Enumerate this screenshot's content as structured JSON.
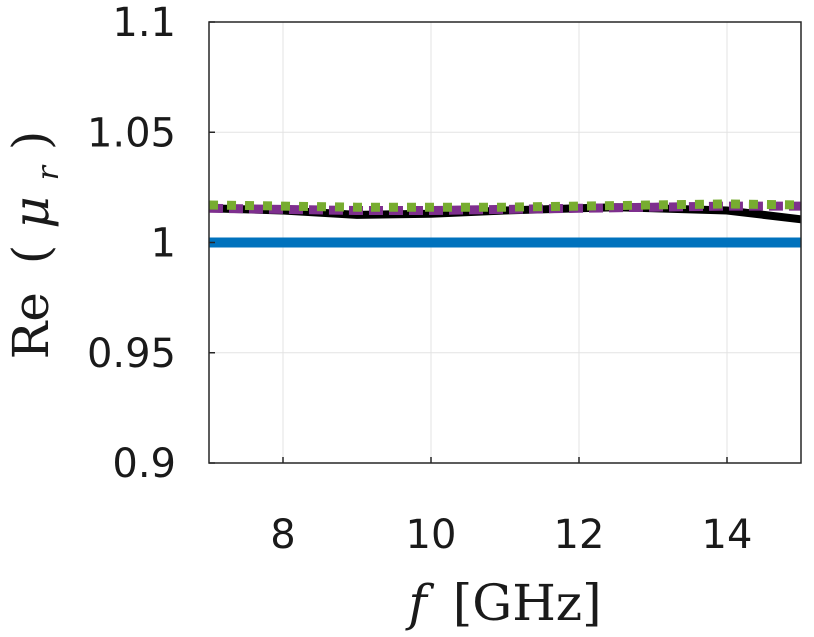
{
  "chart_data": {
    "type": "line",
    "title": "",
    "xlabel_var": "f",
    "xlabel_unit": "[GHz]",
    "ylabel_main": "Re",
    "ylabel_paren_open": "(",
    "ylabel_symbol": "μ",
    "ylabel_sub": "r",
    "ylabel_paren_close": ")",
    "xlim": [
      7,
      15
    ],
    "ylim": [
      0.9,
      1.1
    ],
    "x_ticks": [
      8,
      10,
      12,
      14
    ],
    "x_tick_labels": [
      "8",
      "10",
      "12",
      "14"
    ],
    "y_ticks": [
      0.9,
      0.95,
      1,
      1.05,
      1.1
    ],
    "y_tick_labels": [
      "0.9",
      "0.95",
      "1",
      "1.05",
      "1.1"
    ],
    "grid": true,
    "series": [
      {
        "color": "#0072bd",
        "style": "solid",
        "x": [
          7,
          15
        ],
        "y": [
          1.0,
          1.0
        ]
      },
      {
        "color": "#000000",
        "style": "solid",
        "x": [
          7,
          8,
          9,
          10,
          11,
          12,
          12.5,
          13,
          14,
          15
        ],
        "y": [
          1.0155,
          1.0145,
          1.0125,
          1.013,
          1.0145,
          1.0155,
          1.016,
          1.0155,
          1.0145,
          1.0105
        ]
      },
      {
        "color": "#7e2f8e",
        "style": "dashed",
        "x": [
          7,
          8,
          9,
          10,
          11,
          12,
          13,
          14,
          15
        ],
        "y": [
          1.0155,
          1.015,
          1.0145,
          1.0145,
          1.015,
          1.0155,
          1.016,
          1.0165,
          1.0165
        ]
      },
      {
        "color": "#77ac30",
        "style": "dotted",
        "x": [
          7,
          8,
          9,
          10,
          11,
          12,
          13,
          14,
          15
        ],
        "y": [
          1.017,
          1.0165,
          1.016,
          1.016,
          1.016,
          1.0165,
          1.017,
          1.0175,
          1.017
        ]
      }
    ]
  }
}
